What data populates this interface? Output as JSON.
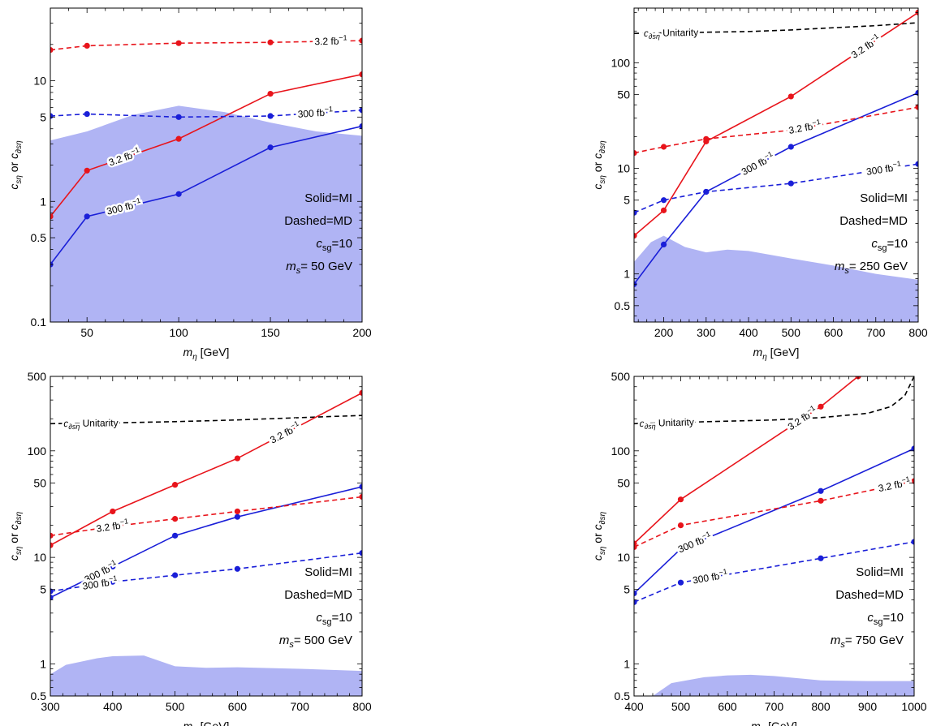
{
  "colors": {
    "red": "#e8141b",
    "blue": "#1a1fd8",
    "excluded_fill": "#b0b4f4",
    "unitarity": "#000000",
    "axis": "#000000"
  },
  "chart_data": [
    {
      "type": "line",
      "ylabel_main": "c",
      "ylabel_sub1": "sη",
      "ylabel_or": " or ",
      "ylabel_sub2": "∂sη",
      "xlabel_main": "m",
      "xlabel_sub": "η",
      "xlabel_unit": " [GeV]",
      "log_y": true,
      "xlim": [
        30,
        200
      ],
      "ylim": [
        0.1,
        40
      ],
      "xticks": [
        50,
        100,
        150,
        200
      ],
      "yticks": [
        {
          "v": 0.1,
          "label": "0.1"
        },
        {
          "v": 0.5,
          "label": "0.5"
        },
        {
          "v": 1,
          "label": "1"
        },
        {
          "v": 5,
          "label": "5"
        },
        {
          "v": 10,
          "label": "10"
        }
      ],
      "legend_lines": [
        "Solid=MI",
        "Dashed=MD"
      ],
      "coupling": {
        "main": "c",
        "sub": "sg",
        "value": "=10"
      },
      "mass": {
        "main": "m",
        "sub": "s",
        "value": "= 50 GeV"
      },
      "excluded_region": {
        "x": [
          30,
          50,
          75,
          100,
          125,
          150,
          175,
          200
        ],
        "y": [
          3.2,
          3.8,
          5.2,
          6.2,
          5.5,
          4.5,
          3.8,
          3.5
        ]
      },
      "series": [
        {
          "style": "solid",
          "color": "red",
          "x": [
            30,
            50,
            100,
            150,
            200
          ],
          "y": [
            0.75,
            1.8,
            3.3,
            7.8,
            11.3
          ],
          "label": "3.2 fb",
          "sup": "−1",
          "label_at": 0.28
        },
        {
          "style": "solid",
          "color": "blue",
          "x": [
            30,
            50,
            100,
            150,
            200
          ],
          "y": [
            0.3,
            0.75,
            1.15,
            2.8,
            4.2
          ],
          "label": "300 fb",
          "sup": "−1",
          "label_at": 0.28
        },
        {
          "style": "dashed",
          "color": "red",
          "x": [
            30,
            50,
            100,
            150,
            200
          ],
          "y": [
            18,
            19.5,
            20.5,
            20.8,
            21.5
          ],
          "label": "3.2 fb",
          "sup": "−1",
          "label_at": 0.9
        },
        {
          "style": "dashed",
          "color": "blue",
          "x": [
            30,
            50,
            100,
            150,
            200
          ],
          "y": [
            5.1,
            5.3,
            5.0,
            5.1,
            5.7
          ],
          "label": "300 fb",
          "sup": "−1",
          "label_at": 0.85
        }
      ]
    },
    {
      "type": "line",
      "ylabel_main": "c",
      "ylabel_sub1": "sη",
      "ylabel_or": " or ",
      "ylabel_sub2": "∂sη",
      "xlabel_main": "m",
      "xlabel_sub": "η",
      "xlabel_unit": " [GeV]",
      "log_y": true,
      "xlim": [
        130,
        800
      ],
      "ylim": [
        0.35,
        330
      ],
      "xticks": [
        200,
        300,
        400,
        500,
        600,
        700,
        800
      ],
      "yticks": [
        {
          "v": 0.5,
          "label": "0.5"
        },
        {
          "v": 1,
          "label": "1"
        },
        {
          "v": 5,
          "label": "5"
        },
        {
          "v": 10,
          "label": "10"
        },
        {
          "v": 50,
          "label": "50"
        },
        {
          "v": 100,
          "label": "100"
        }
      ],
      "legend_lines": [
        "Solid=MI",
        "Dashed=MD"
      ],
      "coupling": {
        "main": "c",
        "sub": "sg",
        "value": "=10"
      },
      "mass": {
        "main": "m",
        "sub": "s",
        "value": "= 250 GeV"
      },
      "unitarity": {
        "label_main": "c",
        "label_sub": "∂sη",
        "label_text": " Unitarity",
        "x": [
          130,
          200,
          300,
          400,
          500,
          600,
          700,
          800
        ],
        "y": [
          190,
          192,
          195,
          198,
          205,
          215,
          225,
          240
        ],
        "label_at": 0.13
      },
      "excluded_region": {
        "x": [
          130,
          170,
          200,
          250,
          300,
          350,
          400,
          500,
          600,
          700,
          800
        ],
        "y": [
          1.3,
          2.0,
          2.3,
          1.8,
          1.6,
          1.7,
          1.65,
          1.4,
          1.2,
          1.0,
          0.88
        ]
      },
      "series": [
        {
          "style": "solid",
          "color": "red",
          "x": [
            130,
            200,
            300,
            500,
            800
          ],
          "y": [
            2.3,
            4.0,
            18,
            48,
            300
          ],
          "label": "3.2 fb",
          "sup": "−1",
          "label_at": 0.83
        },
        {
          "style": "solid",
          "color": "blue",
          "x": [
            130,
            200,
            300,
            500,
            800
          ],
          "y": [
            0.8,
            1.9,
            6.0,
            16,
            52
          ],
          "label": "300 fb",
          "sup": "−1",
          "label_at": 0.5
        },
        {
          "style": "dashed",
          "color": "red",
          "x": [
            130,
            200,
            300,
            500,
            800
          ],
          "y": [
            14,
            16,
            19,
            23,
            38
          ],
          "label": "3.2 fb",
          "sup": "−1",
          "label_at": 0.6
        },
        {
          "style": "dashed",
          "color": "blue",
          "x": [
            130,
            200,
            300,
            500,
            800
          ],
          "y": [
            3.8,
            5.0,
            6.0,
            7.2,
            11
          ],
          "label": "300 fb",
          "sup": "−1",
          "label_at": 0.88
        }
      ]
    },
    {
      "type": "line",
      "ylabel_main": "c",
      "ylabel_sub1": "sη",
      "ylabel_or": " or ",
      "ylabel_sub2": "∂sη",
      "xlabel_main": "m",
      "xlabel_sub": "η",
      "xlabel_unit": " [GeV]",
      "log_y": true,
      "xlim": [
        300,
        800
      ],
      "ylim": [
        0.5,
        500
      ],
      "xticks": [
        300,
        400,
        500,
        600,
        700,
        800
      ],
      "yticks": [
        {
          "v": 0.5,
          "label": "0.5"
        },
        {
          "v": 1,
          "label": "1"
        },
        {
          "v": 5,
          "label": "5"
        },
        {
          "v": 10,
          "label": "10"
        },
        {
          "v": 50,
          "label": "50"
        },
        {
          "v": 100,
          "label": "100"
        },
        {
          "v": 500,
          "label": "500"
        }
      ],
      "legend_lines": [
        "Solid=MI",
        "Dashed=MD"
      ],
      "coupling": {
        "main": "c",
        "sub": "sg",
        "value": "=10"
      },
      "mass": {
        "main": "m",
        "sub": "s",
        "value": "= 500 GeV"
      },
      "unitarity": {
        "label_main": "c",
        "label_sub": "∂sη",
        "label_text": " Unitarity",
        "x": [
          300,
          400,
          500,
          600,
          700,
          800
        ],
        "y": [
          180,
          183,
          188,
          195,
          205,
          215
        ],
        "label_at": 0.13
      },
      "excluded_region": {
        "x": [
          300,
          325,
          375,
          400,
          450,
          500,
          550,
          600,
          700,
          800
        ],
        "y": [
          0.8,
          0.98,
          1.13,
          1.18,
          1.2,
          0.95,
          0.92,
          0.93,
          0.9,
          0.86
        ]
      },
      "series": [
        {
          "style": "solid",
          "color": "red",
          "x": [
            300,
            400,
            500,
            600,
            800
          ],
          "y": [
            13,
            27,
            48,
            85,
            350
          ],
          "label": "3.2 fb",
          "sup": "−1",
          "label_at": 0.75
        },
        {
          "style": "solid",
          "color": "blue",
          "x": [
            300,
            400,
            500,
            600,
            800
          ],
          "y": [
            4.2,
            8.2,
            16,
            24,
            46
          ],
          "label": "300 fb",
          "sup": "−1",
          "label_at": 0.17
        },
        {
          "style": "dashed",
          "color": "red",
          "x": [
            300,
            400,
            500,
            600,
            800
          ],
          "y": [
            16,
            19.5,
            23,
            27,
            37
          ],
          "label": "3.2 fb",
          "sup": "−1",
          "label_at": 0.2
        },
        {
          "style": "dashed",
          "color": "blue",
          "x": [
            300,
            400,
            500,
            600,
            800
          ],
          "y": [
            4.8,
            5.9,
            6.8,
            7.8,
            11
          ],
          "label": "300 fb",
          "sup": "−1",
          "label_at": 0.16
        }
      ]
    },
    {
      "type": "line",
      "ylabel_main": "c",
      "ylabel_sub1": "sη",
      "ylabel_or": " or ",
      "ylabel_sub2": "∂sη",
      "xlabel_main": "m",
      "xlabel_sub": "η",
      "xlabel_unit": " [GeV]",
      "log_y": true,
      "xlim": [
        400,
        1000
      ],
      "ylim": [
        0.5,
        500
      ],
      "xticks": [
        400,
        500,
        600,
        700,
        800,
        900,
        1000
      ],
      "yticks": [
        {
          "v": 0.5,
          "label": "0.5"
        },
        {
          "v": 1,
          "label": "1"
        },
        {
          "v": 5,
          "label": "5"
        },
        {
          "v": 10,
          "label": "10"
        },
        {
          "v": 50,
          "label": "50"
        },
        {
          "v": 100,
          "label": "100"
        },
        {
          "v": 500,
          "label": "500"
        }
      ],
      "legend_lines": [
        "Solid=MI",
        "Dashed=MD"
      ],
      "coupling": {
        "main": "c",
        "sub": "sg",
        "value": "=10"
      },
      "mass": {
        "main": "m",
        "sub": "s",
        "value": "= 750 GeV"
      },
      "unitarity": {
        "label_main": "c",
        "label_sub": "∂sη",
        "label_text": " Unitarity",
        "x": [
          400,
          500,
          600,
          700,
          800,
          900,
          950,
          980,
          1000
        ],
        "y": [
          180,
          185,
          190,
          195,
          205,
          225,
          260,
          330,
          500
        ],
        "label_at": 0.11
      },
      "excluded_region": {
        "x": [
          440,
          480,
          550,
          600,
          650,
          700,
          800,
          900,
          1000
        ],
        "y": [
          0.5,
          0.66,
          0.75,
          0.78,
          0.79,
          0.77,
          0.7,
          0.69,
          0.69
        ]
      },
      "series": [
        {
          "style": "solid",
          "color": "red",
          "x": [
            400,
            500,
            800,
            880
          ],
          "y": [
            13.5,
            35,
            260,
            500
          ],
          "label": "3.2 fb",
          "sup": "−1",
          "label_at": 0.75
        },
        {
          "style": "solid",
          "color": "blue",
          "x": [
            400,
            500,
            800,
            1000
          ],
          "y": [
            4.6,
            12,
            42,
            105
          ],
          "label": "300 fb",
          "sup": "−1",
          "label_at": 0.25
        },
        {
          "style": "dashed",
          "color": "red",
          "x": [
            400,
            500,
            800,
            1000
          ],
          "y": [
            12.5,
            20,
            34,
            52
          ],
          "label": "3.2 fb",
          "sup": "−1",
          "label_at": 0.93
        },
        {
          "style": "dashed",
          "color": "blue",
          "x": [
            400,
            500,
            800,
            1000
          ],
          "y": [
            3.8,
            5.8,
            9.8,
            14
          ],
          "label": "300 fb",
          "sup": "−1",
          "label_at": 0.28
        }
      ]
    }
  ]
}
